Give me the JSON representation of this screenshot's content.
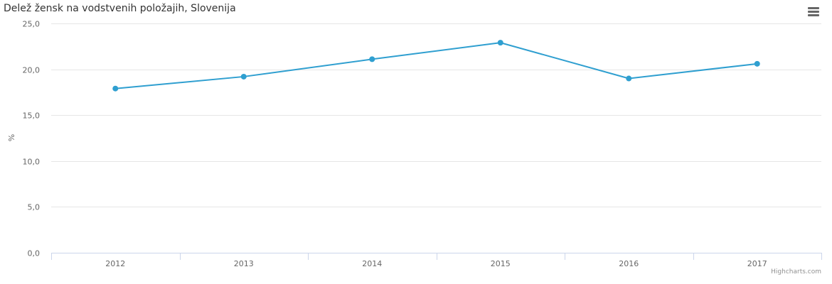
{
  "title": "Delež žensk na vodstvenih položajih, Slovenija",
  "menu": {
    "icon": "hamburger-menu-icon"
  },
  "credits": "Highcharts.com",
  "colors": {
    "series": "#2f9fd0",
    "grid": "#e6e6e6",
    "axis_line": "#ccd6eb",
    "text": "#666666"
  },
  "chart_data": {
    "type": "line",
    "title": "Delež žensk na vodstvenih položajih, Slovenija",
    "xlabel": "",
    "ylabel": "%",
    "ylim": [
      0,
      25
    ],
    "yticks": [
      "0,0",
      "5,0",
      "10,0",
      "15,0",
      "20,0",
      "25,0"
    ],
    "ytick_values": [
      0,
      5,
      10,
      15,
      20,
      25
    ],
    "categories": [
      "2012",
      "2013",
      "2014",
      "2015",
      "2016",
      "2017"
    ],
    "series": [
      {
        "values": [
          17.9,
          19.2,
          21.1,
          22.9,
          19.0,
          20.6
        ]
      }
    ],
    "grid": true,
    "legend": "none"
  }
}
